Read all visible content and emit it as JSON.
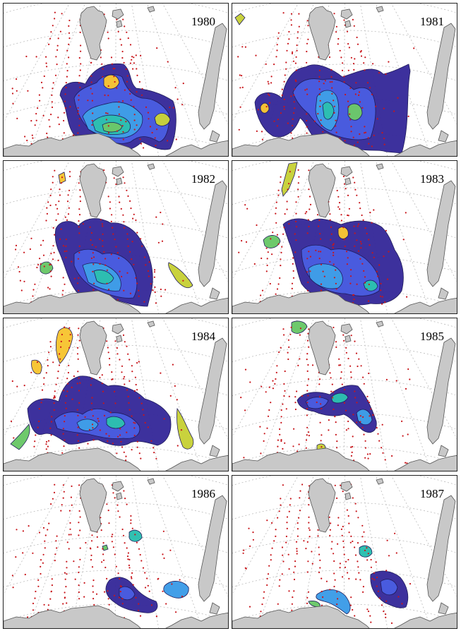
{
  "colors": {
    "land": "#c8c8c8",
    "land_edge": "#555555",
    "grid": "#bbbbbb",
    "station": "#c8161b",
    "contour_scale": [
      "#3a2d9c",
      "#4a5ce0",
      "#3f9ee8",
      "#2dbfb0",
      "#6cc86a",
      "#c8d23a",
      "#f7c534"
    ]
  },
  "panels": [
    {
      "year": "1980",
      "intensity": 0.95
    },
    {
      "year": "1981",
      "intensity": 0.85
    },
    {
      "year": "1982",
      "intensity": 0.75
    },
    {
      "year": "1983",
      "intensity": 0.8
    },
    {
      "year": "1984",
      "intensity": 0.55
    },
    {
      "year": "1985",
      "intensity": 0.35
    },
    {
      "year": "1986",
      "intensity": 0.3
    },
    {
      "year": "1987",
      "intensity": 0.3
    }
  ]
}
